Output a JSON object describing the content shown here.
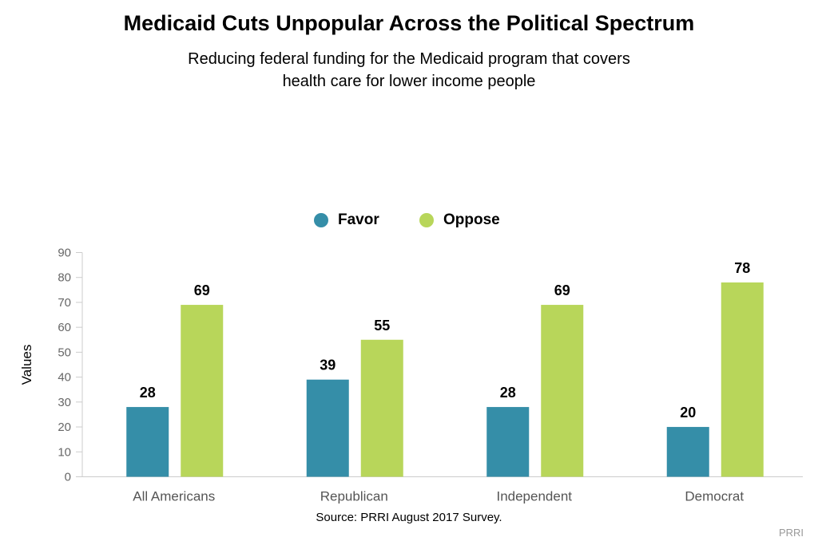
{
  "chart_data": {
    "type": "bar",
    "title": "Medicaid Cuts Unpopular Across the Political Spectrum",
    "subtitle": "Reducing federal funding for the Medicaid program that covers health care for lower income people",
    "xlabel": "",
    "ylabel": "Values",
    "ylim": [
      0,
      90
    ],
    "yticks": [
      0,
      10,
      20,
      30,
      40,
      50,
      60,
      70,
      80,
      90
    ],
    "categories": [
      "All Americans",
      "Republican",
      "Independent",
      "Democrat"
    ],
    "series": [
      {
        "name": "Favor",
        "color": "#358ea8",
        "values": [
          28,
          39,
          28,
          20
        ]
      },
      {
        "name": "Oppose",
        "color": "#b8d65a",
        "values": [
          69,
          55,
          69,
          78
        ]
      }
    ],
    "legend_position": "top-center",
    "grid": false,
    "source": "Source: PRRI August 2017 Survey.",
    "credit": "PRRI"
  }
}
